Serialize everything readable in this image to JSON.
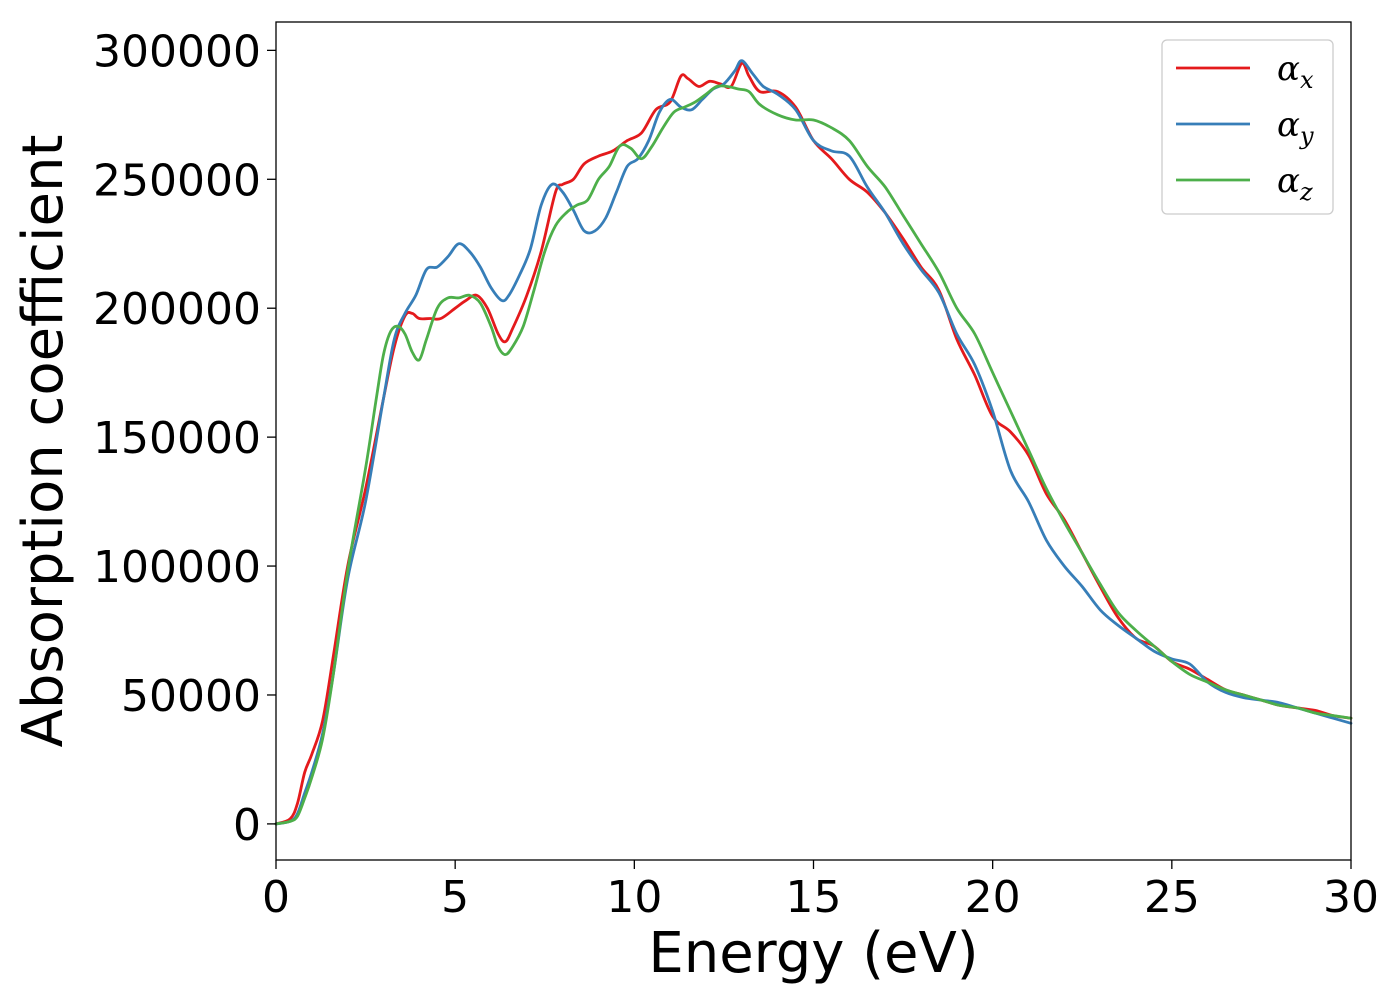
{
  "chart_data": {
    "type": "line",
    "xlabel": "Energy (eV)",
    "ylabel": "Absorption coefficient",
    "xlim": [
      0,
      30
    ],
    "ylim": [
      -14000,
      311000
    ],
    "xticks": [
      0,
      5,
      10,
      15,
      20,
      25,
      30
    ],
    "xtick_labels": [
      "0",
      "5",
      "10",
      "15",
      "20",
      "25",
      "30"
    ],
    "yticks": [
      0,
      50000,
      100000,
      150000,
      200000,
      250000,
      300000
    ],
    "ytick_labels": [
      "0",
      "50000",
      "100000",
      "150000",
      "200000",
      "250000",
      "300000"
    ],
    "grid": false,
    "legend_position": "top-right",
    "series": [
      {
        "name": "α_x",
        "symbol": "α",
        "subscript": "x",
        "color": "#e41a1c",
        "x": [
          0,
          0.4,
          0.6,
          0.8,
          1.0,
          1.3,
          1.6,
          2.0,
          2.5,
          3.0,
          3.3,
          3.6,
          3.8,
          4.0,
          4.3,
          4.6,
          5.0,
          5.3,
          5.6,
          5.9,
          6.2,
          6.4,
          6.6,
          7.0,
          7.4,
          7.8,
          8.0,
          8.3,
          8.6,
          9.0,
          9.4,
          9.8,
          10.2,
          10.6,
          11.0,
          11.3,
          11.5,
          11.8,
          12.1,
          12.4,
          12.7,
          13.0,
          13.2,
          13.5,
          14.0,
          14.5,
          15.0,
          15.5,
          16.0,
          16.5,
          17.0,
          17.5,
          18.0,
          18.5,
          19.0,
          19.5,
          20.0,
          20.5,
          21.0,
          21.5,
          22.0,
          22.5,
          23.0,
          23.5,
          24.0,
          24.5,
          25.0,
          25.5,
          26.0,
          26.5,
          27.0,
          27.5,
          28.0,
          28.5,
          29.0,
          29.5,
          30.0
        ],
        "y": [
          0,
          2000,
          8000,
          20000,
          27000,
          40000,
          65000,
          100000,
          130000,
          165000,
          185000,
          197000,
          198000,
          196000,
          196000,
          196000,
          200000,
          203000,
          205000,
          200000,
          190000,
          187000,
          192000,
          205000,
          222000,
          245000,
          248000,
          250000,
          256000,
          259000,
          261000,
          265000,
          268000,
          277000,
          280000,
          290000,
          289000,
          286000,
          288000,
          287000,
          286000,
          295000,
          290000,
          284000,
          284000,
          278000,
          265000,
          258000,
          250000,
          245000,
          237000,
          227000,
          216000,
          207000,
          188000,
          174000,
          158000,
          152000,
          143000,
          128000,
          118000,
          105000,
          92000,
          80000,
          72000,
          69000,
          63000,
          60000,
          56000,
          52000,
          50000,
          48000,
          46000,
          45000,
          44000,
          42000,
          41000
        ]
      },
      {
        "name": "α_y",
        "symbol": "α",
        "subscript": "y",
        "color": "#377eb8",
        "x": [
          0,
          0.4,
          0.6,
          0.8,
          1.0,
          1.3,
          1.6,
          2.0,
          2.5,
          3.0,
          3.3,
          3.6,
          3.9,
          4.2,
          4.5,
          4.8,
          5.1,
          5.4,
          5.7,
          6.0,
          6.3,
          6.5,
          6.8,
          7.1,
          7.4,
          7.7,
          8.0,
          8.3,
          8.6,
          8.9,
          9.2,
          9.5,
          9.8,
          10.1,
          10.4,
          10.7,
          11.0,
          11.3,
          11.6,
          11.9,
          12.2,
          12.5,
          12.8,
          13.0,
          13.3,
          13.6,
          14.0,
          14.5,
          15.0,
          15.5,
          16.0,
          16.5,
          17.0,
          17.5,
          18.0,
          18.5,
          19.0,
          19.5,
          20.0,
          20.5,
          21.0,
          21.5,
          22.0,
          22.5,
          23.0,
          23.5,
          24.0,
          24.5,
          25.0,
          25.5,
          26.0,
          26.5,
          27.0,
          27.5,
          28.0,
          28.5,
          29.0,
          29.5,
          30.0
        ],
        "y": [
          0,
          1000,
          4000,
          12000,
          20000,
          35000,
          58000,
          95000,
          125000,
          165000,
          188000,
          198000,
          205000,
          215000,
          216000,
          220000,
          225000,
          222000,
          216000,
          208000,
          203000,
          205000,
          213000,
          223000,
          240000,
          248000,
          245000,
          238000,
          230000,
          230000,
          235000,
          245000,
          255000,
          258000,
          265000,
          276000,
          281000,
          278000,
          277000,
          281000,
          285000,
          287000,
          292000,
          296000,
          291000,
          286000,
          283000,
          277000,
          265000,
          261000,
          259000,
          247000,
          237000,
          225000,
          215000,
          206000,
          190000,
          178000,
          160000,
          137000,
          125000,
          110000,
          100000,
          92000,
          83000,
          77000,
          72000,
          67000,
          64000,
          62000,
          55000,
          51000,
          49000,
          48000,
          47000,
          45000,
          43000,
          41000,
          39000
        ]
      },
      {
        "name": "α_z",
        "symbol": "α",
        "subscript": "z",
        "color": "#4daf4a",
        "x": [
          0,
          0.4,
          0.6,
          0.8,
          1.0,
          1.3,
          1.6,
          2.0,
          2.5,
          2.8,
          3.0,
          3.2,
          3.4,
          3.6,
          3.8,
          4.0,
          4.2,
          4.5,
          4.8,
          5.1,
          5.4,
          5.7,
          6.0,
          6.2,
          6.4,
          6.6,
          6.9,
          7.2,
          7.5,
          7.8,
          8.1,
          8.4,
          8.7,
          9.0,
          9.3,
          9.6,
          9.9,
          10.2,
          10.5,
          10.8,
          11.1,
          11.4,
          11.7,
          12.0,
          12.3,
          12.6,
          12.9,
          13.2,
          13.5,
          14.0,
          14.5,
          15.0,
          15.5,
          16.0,
          16.5,
          17.0,
          17.5,
          18.0,
          18.5,
          19.0,
          19.5,
          20.0,
          20.5,
          21.0,
          21.5,
          22.0,
          22.5,
          23.0,
          23.5,
          24.0,
          24.5,
          25.0,
          25.5,
          26.0,
          26.5,
          27.0,
          27.5,
          28.0,
          28.5,
          29.0,
          29.5,
          30.0
        ],
        "y": [
          0,
          1000,
          3000,
          10000,
          18000,
          33000,
          58000,
          98000,
          138000,
          165000,
          182000,
          191000,
          193000,
          190000,
          183000,
          180000,
          188000,
          200000,
          204000,
          204000,
          205000,
          202000,
          193000,
          185000,
          182000,
          185000,
          193000,
          207000,
          222000,
          232000,
          237000,
          240000,
          242000,
          250000,
          255000,
          263000,
          262000,
          258000,
          263000,
          270000,
          276000,
          278000,
          280000,
          283000,
          286000,
          286000,
          285000,
          284000,
          279000,
          275000,
          273000,
          273000,
          270000,
          265000,
          255000,
          247000,
          236000,
          225000,
          214000,
          200000,
          190000,
          175000,
          160000,
          145000,
          130000,
          117000,
          105000,
          93000,
          82000,
          75000,
          69000,
          63000,
          58000,
          55000,
          52000,
          50000,
          48000,
          46000,
          45000,
          43000,
          42000,
          41000
        ]
      }
    ]
  }
}
